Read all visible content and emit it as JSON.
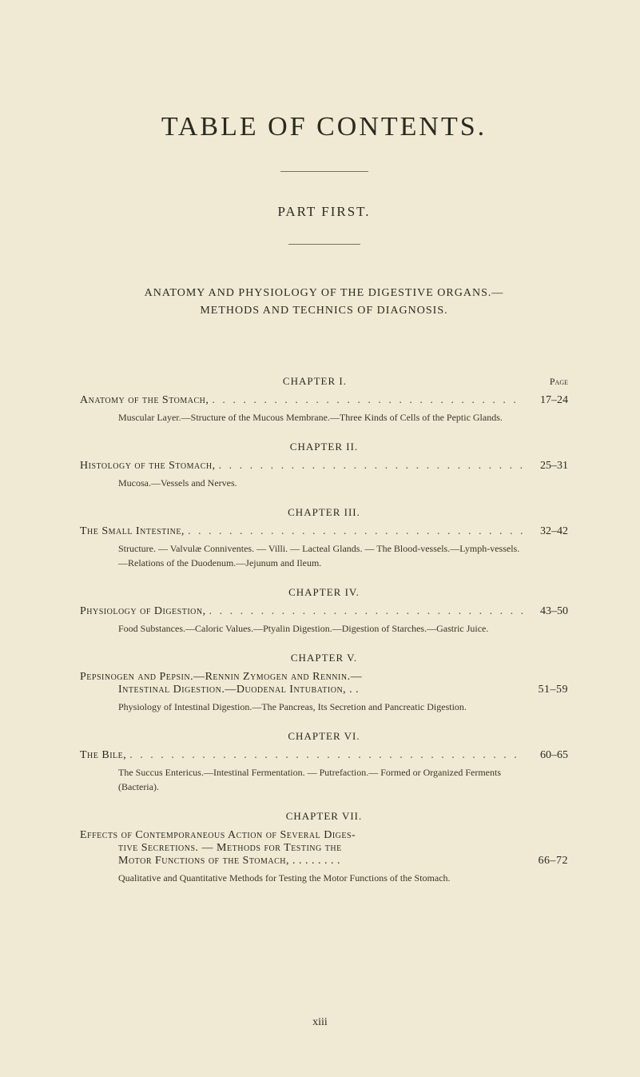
{
  "title": "TABLE OF CONTENTS.",
  "part_label": "PART FIRST.",
  "section_heading_line1": "ANATOMY AND PHYSIOLOGY OF THE DIGESTIVE ORGANS.—",
  "section_heading_line2": "METHODS AND TECHNICS OF DIAGNOSIS.",
  "page_header": "Page",
  "leaders": ". . . . . . . . . . . . . . . . . . . . . . . . . . . . . . . . . . . . . . . . . . . . . . . .",
  "folio": "xiii",
  "chapters": [
    {
      "label": "CHAPTER I.",
      "title": "Anatomy of the Stomach,",
      "pages": "17–24",
      "desc": "Muscular Layer.—Structure of the Mucous Membrane.—Three Kinds of Cells of the Peptic Glands."
    },
    {
      "label": "CHAPTER II.",
      "title": "Histology of the Stomach,",
      "pages": "25–31",
      "desc": "Mucosa.—Vessels and Nerves."
    },
    {
      "label": "CHAPTER III.",
      "title": "The Small Intestine,",
      "pages": "32–42",
      "desc": "Structure. — Valvulæ Conniventes. — Villi. — Lacteal Glands. — The Blood-vessels.—Lymph-vessels.—Relations of the Duodenum.—Jejunum and Ileum."
    },
    {
      "label": "CHAPTER IV.",
      "title": "Physiology of Digestion,",
      "pages": "43–50",
      "desc": "Food Substances.—Caloric Values.—Ptyalin Digestion.—Digestion of Starches.—Gastric Juice."
    },
    {
      "label": "CHAPTER V.",
      "title_lines": [
        "Pepsinogen and Pepsin.—Rennin Zymogen and Rennin.—",
        "Intestinal Digestion.—Duodenal Intubation, . ."
      ],
      "pages": "51–59",
      "desc": "Physiology of Intestinal Digestion.—The Pancreas, Its Secretion and Pancreatic Digestion."
    },
    {
      "label": "CHAPTER VI.",
      "title": "The Bile,",
      "pages": "60–65",
      "desc": "The Succus Entericus.—Intestinal Fermentation. — Putrefaction.— Formed or Organized Ferments (Bacteria)."
    },
    {
      "label": "CHAPTER VII.",
      "title_lines": [
        "Effects of Contemporaneous Action of Several Diges-",
        "tive Secretions. — Methods for Testing the",
        "Motor Functions of the Stomach, . . . . . . . ."
      ],
      "pages": "66–72",
      "desc": "Qualitative and Quantitative Methods for Testing the Motor Functions of the Stomach."
    }
  ]
}
